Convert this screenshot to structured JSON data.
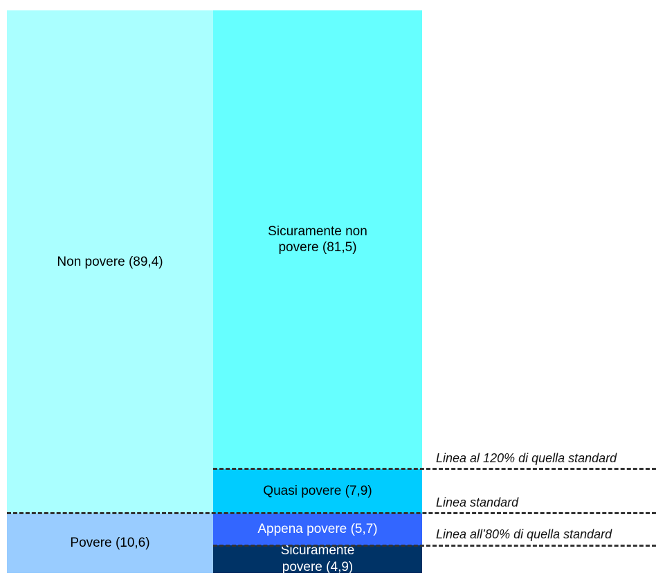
{
  "chart_data": {
    "type": "stacked-bar",
    "bars": [
      {
        "segments": [
          {
            "name": "Povere",
            "value": 10.6,
            "value_label": "(10,6)",
            "color": "#99ccff",
            "text_color": "#000000"
          },
          {
            "name": "Non povere",
            "value": 89.4,
            "value_label": "(89,4)",
            "color": "#aaffff",
            "text_color": "#000000"
          }
        ]
      },
      {
        "segments": [
          {
            "name": "Sicuramente povere",
            "value": 4.9,
            "value_label": "(4,9)",
            "color": "#003366",
            "text_color": "#ffffff"
          },
          {
            "name": "Appena povere",
            "value": 5.7,
            "value_label": "(5,7)",
            "color": "#3366ff",
            "text_color": "#ffffff"
          },
          {
            "name": "Quasi povere",
            "value": 7.9,
            "value_label": "(7,9)",
            "color": "#00ccff",
            "text_color": "#000000"
          },
          {
            "name": "Sicuramente non povere",
            "value": 81.5,
            "value_label": "(81,5)",
            "color": "#66ffff",
            "text_color": "#000000"
          }
        ]
      }
    ],
    "lines": [
      "Linea all’80% di quella standard",
      "Linea standard",
      "Linea al 120% di quella standard"
    ]
  }
}
